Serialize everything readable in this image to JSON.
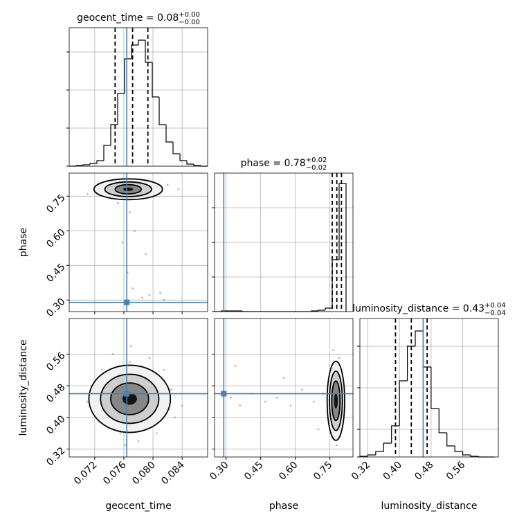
{
  "chart_data": {
    "type": "corner",
    "color": "#4682b4",
    "grid": true,
    "parameters": [
      {
        "name": "geocent_time",
        "lim": [
          0.0685,
          0.0875
        ],
        "ticks": [
          0.072,
          0.076,
          {
            "value": 0.08,
            "label": "0.080"
          },
          0.084
        ],
        "truth": 0.0764
      },
      {
        "name": "phase",
        "lim": [
          0.25,
          0.85
        ],
        "ticks": [
          {
            "value": 0.3,
            "label": "0.30"
          },
          0.45,
          {
            "value": 0.6,
            "label": "0.60"
          },
          0.75
        ],
        "truth": 0.29
      },
      {
        "name": "luminosity_distance",
        "lim": [
          0.3,
          0.65
        ],
        "ticks": [
          0.32,
          {
            "value": 0.4,
            "label": "0.40"
          },
          0.48,
          0.56
        ],
        "truth": 0.46
      }
    ],
    "histograms": [
      {
        "title": "geocent_time = 0.08",
        "upper": "+0.00",
        "lower": "−0.00",
        "bins": [
          0.0685,
          0.06945,
          0.0704,
          0.07135,
          0.0723,
          0.07325,
          0.0742,
          0.07515,
          0.0761,
          0.07705,
          0.078,
          0.07895,
          0.0799,
          0.08085,
          0.0818,
          0.08275,
          0.0837,
          0.08465,
          0.0856,
          0.08655,
          0.0875
        ],
        "counts": [
          0,
          1,
          2,
          4,
          8,
          30,
          60,
          105,
          155,
          175,
          182,
          150,
          100,
          60,
          35,
          18,
          8,
          3,
          1,
          0
        ],
        "ylim": [
          0,
          200
        ],
        "yticks": [
          0,
          55,
          110,
          165
        ],
        "quantiles": [
          0.0748,
          0.0772,
          0.0793
        ]
      },
      {
        "title": "phase = 0.78",
        "upper": "+0.02",
        "lower": "−0.02",
        "bins": [
          0.25,
          0.28,
          0.31,
          0.34,
          0.37,
          0.4,
          0.43,
          0.46,
          0.49,
          0.52,
          0.55,
          0.58,
          0.61,
          0.64,
          0.67,
          0.7,
          0.73,
          0.76,
          0.79,
          0.82
        ],
        "counts": [
          0,
          1,
          1,
          1,
          0,
          0,
          0,
          0,
          0,
          0,
          0,
          0,
          0,
          0,
          1,
          2,
          5,
          75,
          185
        ],
        "ylim": [
          0,
          200
        ],
        "yticks": [
          0,
          50,
          100,
          150
        ],
        "quantiles": [
          0.76,
          0.78,
          0.8
        ]
      },
      {
        "title": "luminosity_distance = 0.43",
        "upper": "+0.04",
        "lower": "−0.04",
        "bins": [
          0.3,
          0.32,
          0.34,
          0.36,
          0.38,
          0.4,
          0.42,
          0.44,
          0.46,
          0.48,
          0.5,
          0.52,
          0.54,
          0.56,
          0.58,
          0.6,
          0.62,
          0.64
        ],
        "counts": [
          1,
          3,
          8,
          20,
          45,
          110,
          160,
          182,
          130,
          70,
          35,
          16,
          8,
          3,
          1,
          0,
          0
        ],
        "ylim": [
          0,
          200
        ],
        "yticks": [
          0,
          40,
          100,
          160
        ],
        "quantiles": [
          0.39,
          0.43,
          0.47
        ]
      }
    ],
    "pairs": [
      {
        "x": [
          0.072,
          0.0735,
          0.0745,
          0.075,
          0.078,
          0.0805,
          0.082,
          0.0835,
          0.071,
          0.0775,
          0.079,
          0.0765,
          0.0772,
          0.0758,
          0.0785,
          0.0795,
          0.081,
          0.0815,
          0.0768,
          0.0752
        ],
        "y": [
          0.77,
          0.76,
          0.79,
          0.8,
          0.81,
          0.79,
          0.8,
          0.78,
          0.76,
          0.6,
          0.5,
          0.42,
          0.35,
          0.55,
          0.31,
          0.32,
          0.33,
          0.3,
          0.68,
          0.72
        ],
        "contours": [
          {
            "cx": 0.0766,
            "cy": 0.78,
            "rx": 0.0047,
            "ry": 0.045
          },
          {
            "cx": 0.0766,
            "cy": 0.78,
            "rx": 0.0032,
            "ry": 0.032
          },
          {
            "cx": 0.0766,
            "cy": 0.78,
            "rx": 0.0018,
            "ry": 0.02
          },
          {
            "cx": 0.0766,
            "cy": 0.78,
            "rx": 0.0007,
            "ry": 0.008
          }
        ]
      },
      {
        "x": [
          0.071,
          0.073,
          0.0745,
          0.0755,
          0.078,
          0.08,
          0.0825,
          0.084,
          0.0735,
          0.0795,
          0.077,
          0.0762,
          0.0815,
          0.072,
          0.0788,
          0.0752,
          0.0805,
          0.0768,
          0.083,
          0.0742
        ],
        "y": [
          0.44,
          0.52,
          0.56,
          0.36,
          0.34,
          0.38,
          0.47,
          0.43,
          0.4,
          0.55,
          0.58,
          0.33,
          0.52,
          0.48,
          0.5,
          0.41,
          0.36,
          0.54,
          0.4,
          0.46
        ],
        "contours": [
          {
            "cx": 0.0768,
            "cy": 0.447,
            "rx": 0.0056,
            "ry": 0.085
          },
          {
            "cx": 0.0768,
            "cy": 0.447,
            "rx": 0.004,
            "ry": 0.062
          },
          {
            "cx": 0.0768,
            "cy": 0.447,
            "rx": 0.0026,
            "ry": 0.04
          },
          {
            "cx": 0.0768,
            "cy": 0.447,
            "rx": 0.001,
            "ry": 0.015
          }
        ]
      },
      {
        "x": [
          0.32,
          0.36,
          0.41,
          0.47,
          0.52,
          0.58,
          0.63,
          0.68,
          0.72,
          0.76,
          0.77,
          0.79,
          0.78,
          0.8,
          0.755,
          0.785,
          0.765,
          0.34,
          0.55,
          0.7
        ],
        "y": [
          0.45,
          0.43,
          0.46,
          0.44,
          0.45,
          0.43,
          0.47,
          0.44,
          0.46,
          0.52,
          0.36,
          0.55,
          0.33,
          0.4,
          0.5,
          0.38,
          0.57,
          0.53,
          0.5,
          0.37
        ],
        "contours": [
          {
            "cx": 0.776,
            "cy": 0.442,
            "rx": 0.038,
            "ry": 0.1
          },
          {
            "cx": 0.776,
            "cy": 0.442,
            "rx": 0.028,
            "ry": 0.075
          },
          {
            "cx": 0.776,
            "cy": 0.442,
            "rx": 0.018,
            "ry": 0.05
          },
          {
            "cx": 0.776,
            "cy": 0.442,
            "rx": 0.008,
            "ry": 0.02
          }
        ]
      }
    ]
  }
}
